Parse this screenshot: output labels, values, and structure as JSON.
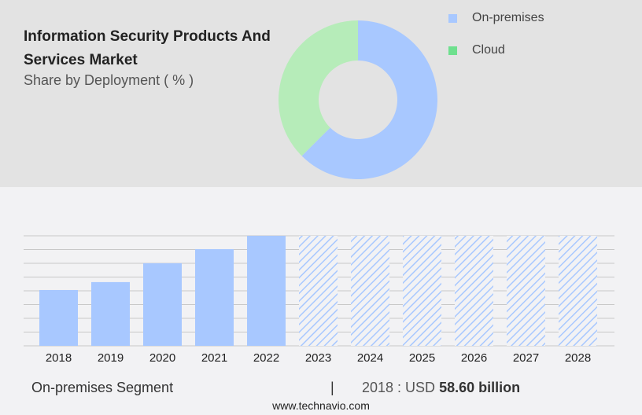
{
  "header": {
    "title": "Information Security Products And Services Market",
    "subtitle": "Share by Deployment ( % )"
  },
  "chart_data": [
    {
      "type": "pie",
      "subtype": "donut",
      "labels": [
        "On-premises",
        "Cloud"
      ],
      "values": [
        62.5,
        37.5
      ],
      "colors": [
        "#a8c8ff",
        "#b6ecb9"
      ],
      "legend_colors": [
        "#a8c8ff",
        "#6ee08e"
      ],
      "legend": "right"
    },
    {
      "type": "bar",
      "categories": [
        "2018",
        "2019",
        "2020",
        "2021",
        "2022",
        "2023",
        "2024",
        "2025",
        "2026",
        "2027",
        "2028"
      ],
      "values": [
        58.6,
        66.9,
        86.7,
        101.5,
        115.5,
        null,
        null,
        null,
        null,
        null,
        null
      ],
      "forecast_categories": [
        "2023",
        "2024",
        "2025",
        "2026",
        "2027",
        "2028"
      ],
      "color": "#a8c8ff",
      "grid": true,
      "ylim": [
        0,
        115.5
      ],
      "xlabel": "",
      "ylabel": ""
    }
  ],
  "footer": {
    "segment": "On-premises Segment",
    "separator": "|",
    "year_label": "2018 : USD",
    "value": "58.60 billion",
    "website": "www.technavio.com"
  }
}
